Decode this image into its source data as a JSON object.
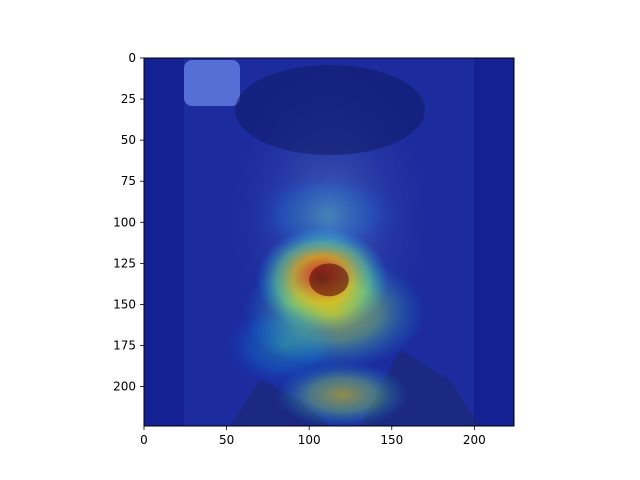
{
  "chart_data": {
    "type": "heatmap",
    "title": "",
    "xlabel": "",
    "ylabel": "",
    "xlim": [
      0,
      224
    ],
    "ylim": [
      224,
      0
    ],
    "y_inverted": true,
    "grid": false,
    "legend": "none",
    "x_ticks": [
      {
        "value": 0,
        "label": "0"
      },
      {
        "value": 50,
        "label": "50"
      },
      {
        "value": 100,
        "label": "100"
      },
      {
        "value": 150,
        "label": "150"
      },
      {
        "value": 200,
        "label": "200"
      }
    ],
    "y_ticks": [
      {
        "value": 0,
        "label": "0"
      },
      {
        "value": 25,
        "label": "25"
      },
      {
        "value": 50,
        "label": "50"
      },
      {
        "value": 75,
        "label": "75"
      },
      {
        "value": 100,
        "label": "100"
      },
      {
        "value": 125,
        "label": "125"
      },
      {
        "value": 150,
        "label": "150"
      },
      {
        "value": 175,
        "label": "175"
      },
      {
        "value": 200,
        "label": "200"
      }
    ],
    "colormap": "jet",
    "background_color": "#1a2a9e",
    "hotspots": [
      {
        "x": 108,
        "y": 135,
        "rx": 40,
        "ry": 32,
        "intensity": 1.0
      },
      {
        "x": 115,
        "y": 155,
        "rx": 55,
        "ry": 35,
        "intensity": 0.75
      },
      {
        "x": 120,
        "y": 205,
        "rx": 40,
        "ry": 20,
        "intensity": 0.7
      },
      {
        "x": 85,
        "y": 175,
        "rx": 35,
        "ry": 25,
        "intensity": 0.55
      },
      {
        "x": 110,
        "y": 95,
        "rx": 45,
        "ry": 25,
        "intensity": 0.4
      }
    ]
  }
}
